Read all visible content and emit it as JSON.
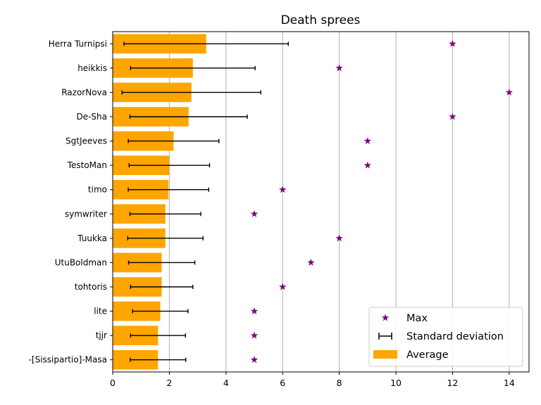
{
  "chart_data": {
    "type": "bar",
    "orientation": "horizontal",
    "title": "Death sprees",
    "xlabel": "",
    "ylabel": "",
    "xlim": [
      0,
      14.7
    ],
    "x_ticks": [
      0,
      2,
      4,
      6,
      8,
      10,
      12,
      14
    ],
    "grid": "vertical",
    "legend_position": "lower-right",
    "colors": {
      "average": "#FFA500",
      "max": "#800080",
      "std": "#000000",
      "grid": "#b0b0b0"
    },
    "categories": [
      "Herra Turnipsi",
      "heikkis",
      "RazorNova",
      "De-Sha",
      "SgtJeeves",
      "TestoMan",
      "timo",
      "symwriter",
      "Tuukka",
      "UtuBoldman",
      "tohtoris",
      "lite",
      "tjjr",
      "-[Sissipartio]-Masa"
    ],
    "series": [
      {
        "name": "Average",
        "kind": "bar",
        "values": [
          3.3,
          2.83,
          2.78,
          2.68,
          2.15,
          2.0,
          1.97,
          1.86,
          1.86,
          1.73,
          1.73,
          1.68,
          1.6,
          1.6
        ]
      },
      {
        "name": "Standard deviation",
        "kind": "errorbar",
        "values": [
          2.9,
          2.2,
          2.45,
          2.07,
          1.6,
          1.42,
          1.42,
          1.25,
          1.33,
          1.17,
          1.1,
          0.98,
          0.97,
          0.98
        ]
      },
      {
        "name": "Max",
        "kind": "marker",
        "values": [
          12,
          8,
          14,
          12,
          9,
          9,
          6,
          5,
          8,
          7,
          6,
          5,
          5,
          5
        ]
      }
    ],
    "legend": [
      "Max",
      "Standard deviation",
      "Average"
    ]
  }
}
